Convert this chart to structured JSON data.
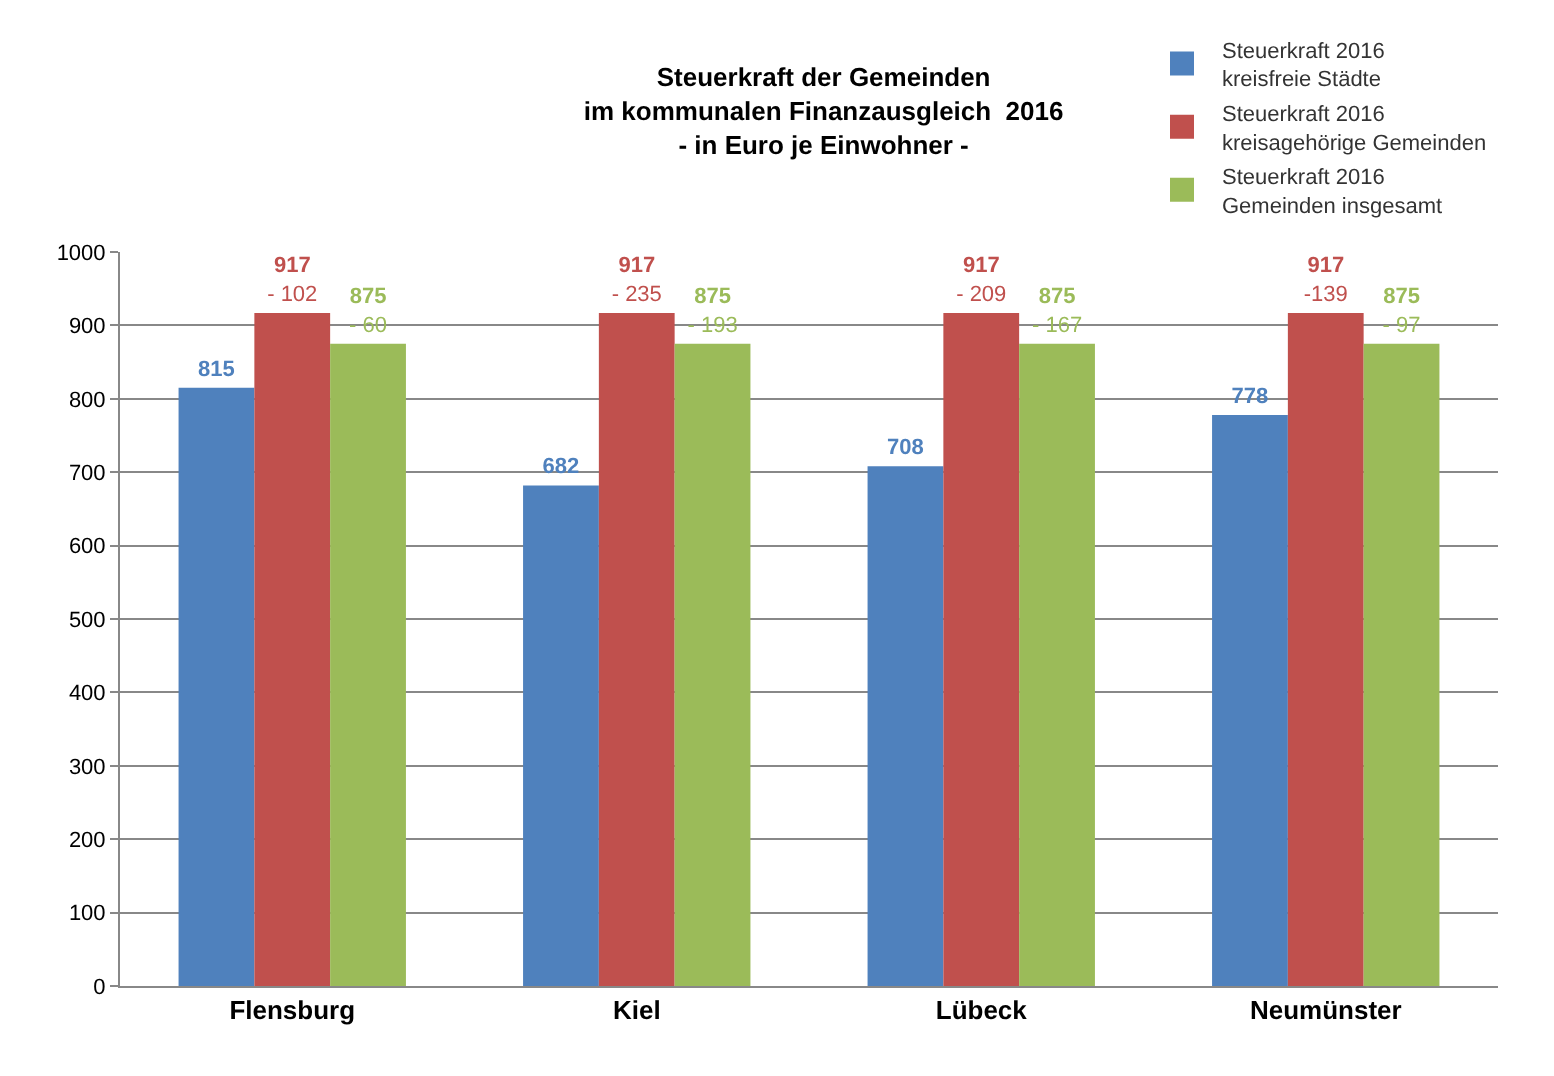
{
  "chart_data": {
    "type": "bar",
    "title": "Steuerkraft der Gemeinden\nim kommunalen Finanzausgleich  2016\n- in Euro je Einwohner -",
    "categories": [
      "Flensburg",
      "Kiel",
      "Lübeck",
      "Neumünster"
    ],
    "series": [
      {
        "name": "Steuerkraft 2016\nkreisfreie Städte",
        "color": "#4f81bd",
        "values": [
          815,
          682,
          708,
          778
        ],
        "value_labels": [
          "815",
          "682",
          "708",
          "778"
        ]
      },
      {
        "name": "Steuerkraft 2016\nkreisagehörige Gemeinden",
        "color": "#c0504d",
        "values": [
          917,
          917,
          917,
          917
        ],
        "value_labels": [
          "917\n- 102",
          "917\n- 235",
          "917\n- 209",
          "917\n-139"
        ]
      },
      {
        "name": "Steuerkraft 2016\nGemeinden insgesamt",
        "color": "#9bbb59",
        "values": [
          875,
          875,
          875,
          875
        ],
        "value_labels": [
          "875\n- 60",
          "875\n- 193",
          "875\n- 167",
          "875\n- 97"
        ]
      }
    ],
    "ylim": [
      0,
      1000
    ],
    "yticks": [
      0,
      100,
      200,
      300,
      400,
      500,
      600,
      700,
      800,
      900,
      1000
    ],
    "grid": "y",
    "legend": "top right"
  }
}
